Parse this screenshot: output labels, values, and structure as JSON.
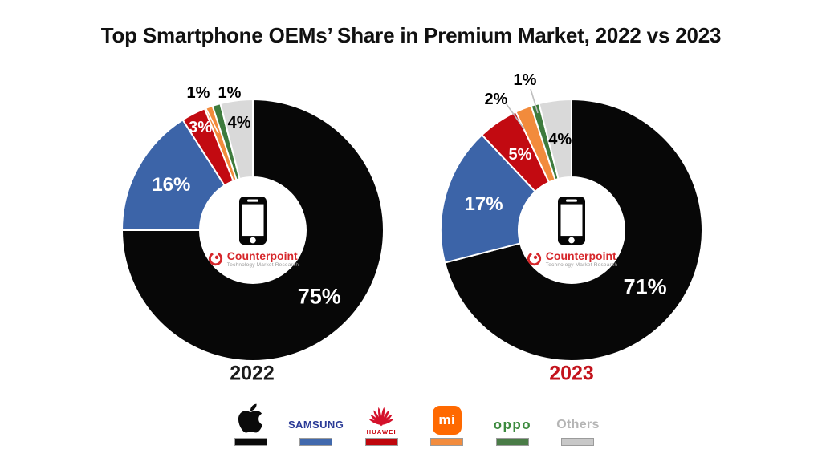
{
  "title": "Top Smartphone OEMs’ Share in Premium Market, 2022 vs 2023",
  "source_logo": {
    "brand": "Counterpoint",
    "tagline": "Technology Market Research"
  },
  "chart_data": [
    {
      "type": "pie",
      "title": "2022",
      "title_color": "#1a1a1a",
      "categories": [
        "Apple",
        "Samsung",
        "Huawei",
        "Xiaomi",
        "OPPO",
        "Others"
      ],
      "values": [
        75,
        16,
        3,
        1,
        1,
        4
      ],
      "labels": [
        "75%",
        "16%",
        "3%",
        "1%",
        "1%",
        "4%"
      ],
      "colors": [
        "#070707",
        "#3C64A8",
        "#C20A11",
        "#F28B3C",
        "#3E7B3D",
        "#D9D9D9"
      ],
      "label_colors": [
        "#ffffff",
        "#ffffff",
        "#ffffff",
        "#000000",
        "#000000",
        "#000000"
      ],
      "start_angle_deg": 0,
      "direction": "clockwise",
      "donut_hole_ratio": 0.405,
      "legend_position": "bottom"
    },
    {
      "type": "pie",
      "title": "2023",
      "title_color": "#C3131C",
      "categories": [
        "Apple",
        "Samsung",
        "Huawei",
        "Xiaomi",
        "OPPO",
        "Others"
      ],
      "values": [
        71,
        17,
        5,
        2,
        1,
        4
      ],
      "labels": [
        "71%",
        "17%",
        "5%",
        "2%",
        "1%",
        "4%"
      ],
      "colors": [
        "#070707",
        "#3C64A8",
        "#C20A11",
        "#F28B3C",
        "#3E7B3D",
        "#D9D9D9"
      ],
      "label_colors": [
        "#ffffff",
        "#ffffff",
        "#ffffff",
        "#000000",
        "#000000",
        "#000000"
      ],
      "start_angle_deg": 0,
      "direction": "clockwise",
      "donut_hole_ratio": 0.405,
      "legend_position": "bottom"
    }
  ],
  "legend": {
    "items": [
      {
        "name": "Apple",
        "wordmark": "",
        "wordmark_color": "#0a0a0a",
        "swatch": "#0a0a0a"
      },
      {
        "name": "Samsung",
        "wordmark": "SAMSUNG",
        "wordmark_color": "#2B3B97",
        "swatch": "#4169AD"
      },
      {
        "name": "Huawei",
        "wordmark": "HUAWEI",
        "wordmark_color": "#C7000B",
        "swatch": "#BF060C"
      },
      {
        "name": "Xiaomi",
        "wordmark": "mi",
        "wordmark_color": "#ffffff",
        "swatch": "#F28C3E",
        "tile_color": "#FF6900"
      },
      {
        "name": "OPPO",
        "wordmark": "oppo",
        "wordmark_color": "#3C8A3E",
        "swatch": "#4A7C47"
      },
      {
        "name": "Others",
        "wordmark": "Others",
        "wordmark_color": "#B5B5B5",
        "swatch": "#C8C8C8"
      }
    ]
  }
}
